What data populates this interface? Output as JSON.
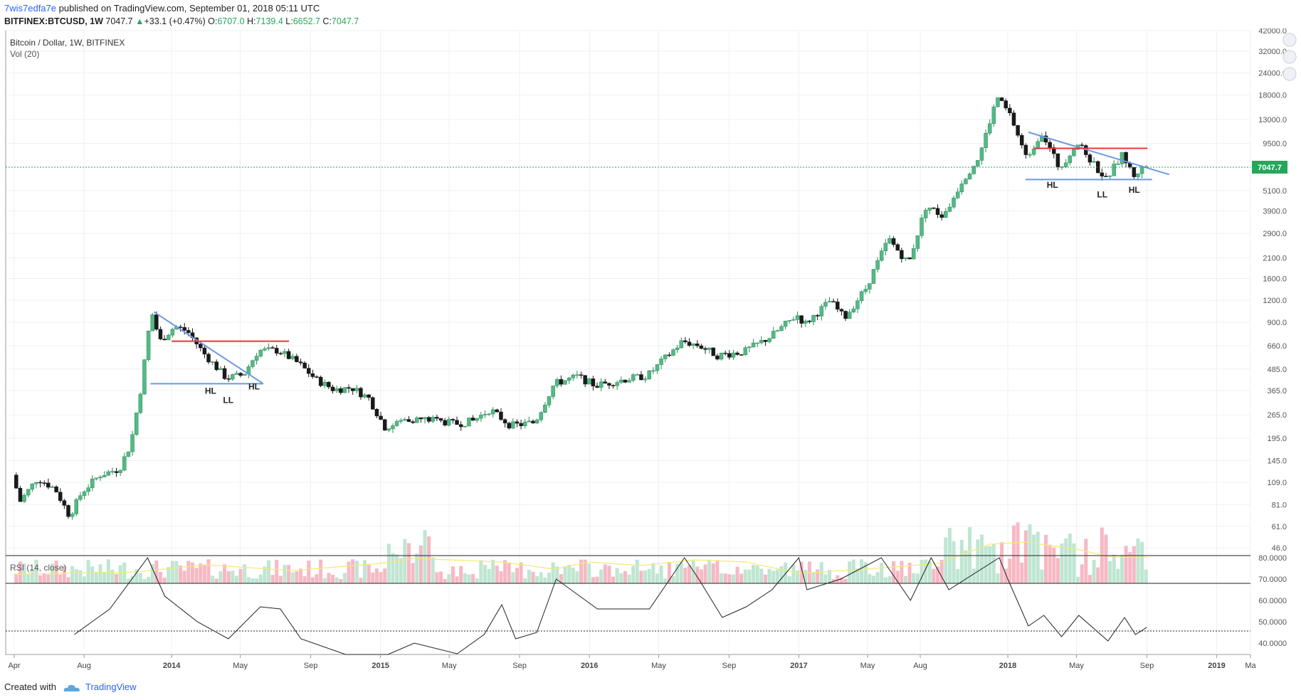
{
  "header": {
    "username": "7wis7edfa7e",
    "published_text": "published on TradingView.com, September 01, 2018 05:11 UTC",
    "symbol": "BITFINEX:BTCUSD, 1W",
    "last": "7047.7",
    "change_arrow": "▲",
    "change": "+33.1 (+0.47%)",
    "o_label": "O:",
    "o_value": "6707.0",
    "h_label": "H:",
    "h_value": "7139.4",
    "l_label": "L:",
    "l_value": "6652.7",
    "c_label": "C:",
    "c_value": "7047.7"
  },
  "footer": {
    "created_with": "Created with",
    "brand": "TradingView"
  },
  "chart_data": {
    "type": "candlestick",
    "title": "Bitcoin / Dollar, 1W, BITFINEX",
    "volume_label": "Vol (20)",
    "rsi_label": "RSI (14, close)",
    "price_scale": "log",
    "price_ticks": [
      "42000.0",
      "32000.0",
      "24000.0",
      "18000.0",
      "13000.0",
      "9500.0",
      "7047.7",
      "5100.0",
      "3900.0",
      "2900.0",
      "2100.0",
      "1600.0",
      "1200.0",
      "900.0",
      "660.0",
      "485.0",
      "365.0",
      "265.0",
      "195.0",
      "145.0",
      "109.0",
      "81.0",
      "61.0",
      "46.0"
    ],
    "last_price": "7047.7",
    "rsi_ticks": [
      "80.0000",
      "70.0000",
      "60.0000",
      "50.0000",
      "40.0000"
    ],
    "rsi_current": "47.4",
    "x_ticks": [
      "Apr",
      "Aug",
      "2014",
      "May",
      "Sep",
      "2015",
      "May",
      "Sep",
      "2016",
      "May",
      "Sep",
      "2017",
      "May",
      "Aug",
      "2018",
      "May",
      "Sep",
      "2019",
      "Ma"
    ],
    "annotations": [
      "HL",
      "LL",
      "HL",
      "HL",
      "LL",
      "HL"
    ],
    "price_path": [
      [
        "2013-04-01",
        120
      ],
      [
        "2013-04-15",
        85
      ],
      [
        "2013-05-15",
        115
      ],
      [
        "2013-06-15",
        100
      ],
      [
        "2013-07-10",
        70
      ],
      [
        "2013-08-01",
        96
      ],
      [
        "2013-09-01",
        120
      ],
      [
        "2013-10-05",
        130
      ],
      [
        "2013-10-25",
        180
      ],
      [
        "2013-11-12",
        380
      ],
      [
        "2013-11-30",
        1050
      ],
      [
        "2013-12-15",
        700
      ],
      [
        "2014-01-10",
        850
      ],
      [
        "2014-02-01",
        800
      ],
      [
        "2014-03-01",
        600
      ],
      [
        "2014-04-10",
        430
      ],
      [
        "2014-05-10",
        450
      ],
      [
        "2014-06-05",
        620
      ],
      [
        "2014-07-10",
        620
      ],
      [
        "2014-08-15",
        520
      ],
      [
        "2014-09-15",
        420
      ],
      [
        "2014-10-15",
        370
      ],
      [
        "2014-11-15",
        380
      ],
      [
        "2014-12-15",
        330
      ],
      [
        "2015-01-14",
        220
      ],
      [
        "2015-02-15",
        250
      ],
      [
        "2015-04-01",
        250
      ],
      [
        "2015-05-15",
        235
      ],
      [
        "2015-06-15",
        245
      ],
      [
        "2015-07-15",
        285
      ],
      [
        "2015-08-20",
        230
      ],
      [
        "2015-10-01",
        240
      ],
      [
        "2015-11-04",
        400
      ],
      [
        "2015-12-15",
        440
      ],
      [
        "2016-01-15",
        390
      ],
      [
        "2016-03-01",
        420
      ],
      [
        "2016-04-15",
        445
      ],
      [
        "2016-06-15",
        700
      ],
      [
        "2016-07-15",
        660
      ],
      [
        "2016-08-15",
        580
      ],
      [
        "2016-10-01",
        610
      ],
      [
        "2016-11-15",
        740
      ],
      [
        "2017-01-01",
        990
      ],
      [
        "2017-01-15",
        880
      ],
      [
        "2017-02-28",
        1190
      ],
      [
        "2017-03-25",
        950
      ],
      [
        "2017-05-01",
        1400
      ],
      [
        "2017-06-10",
        2700
      ],
      [
        "2017-07-15",
        1950
      ],
      [
        "2017-08-15",
        4200
      ],
      [
        "2017-09-15",
        3600
      ],
      [
        "2017-10-15",
        5700
      ],
      [
        "2017-11-15",
        7900
      ],
      [
        "2017-12-17",
        17500
      ],
      [
        "2018-01-10",
        13500
      ],
      [
        "2018-02-06",
        7800
      ],
      [
        "2018-03-05",
        11000
      ],
      [
        "2018-04-05",
        6800
      ],
      [
        "2018-05-05",
        9600
      ],
      [
        "2018-06-25",
        5900
      ],
      [
        "2018-07-24",
        8200
      ],
      [
        "2018-08-12",
        6200
      ],
      [
        "2018-09-01",
        7047
      ]
    ],
    "rsi_path": [
      [
        "2013-07-15",
        44
      ],
      [
        "2013-09-15",
        56
      ],
      [
        "2013-11-20",
        90
      ],
      [
        "2013-12-20",
        62
      ],
      [
        "2014-02-15",
        50
      ],
      [
        "2014-04-10",
        42
      ],
      [
        "2014-06-05",
        57
      ],
      [
        "2014-07-10",
        56
      ],
      [
        "2014-08-15",
        42
      ],
      [
        "2014-11-01",
        30
      ],
      [
        "2015-01-14",
        25
      ],
      [
        "2015-03-01",
        40
      ],
      [
        "2015-05-15",
        35
      ],
      [
        "2015-07-01",
        44
      ],
      [
        "2015-08-01",
        58
      ],
      [
        "2015-08-25",
        42
      ],
      [
        "2015-10-01",
        45
      ],
      [
        "2015-11-04",
        70
      ],
      [
        "2016-01-15",
        56
      ],
      [
        "2016-04-15",
        56
      ],
      [
        "2016-06-15",
        84
      ],
      [
        "2016-07-10",
        70
      ],
      [
        "2016-08-20",
        52
      ],
      [
        "2016-10-01",
        57
      ],
      [
        "2016-11-15",
        65
      ],
      [
        "2017-01-01",
        84
      ],
      [
        "2017-01-15",
        65
      ],
      [
        "2017-03-15",
        70
      ],
      [
        "2017-05-25",
        86
      ],
      [
        "2017-07-15",
        60
      ],
      [
        "2017-08-20",
        82
      ],
      [
        "2017-09-20",
        65
      ],
      [
        "2017-12-17",
        95
      ],
      [
        "2018-01-01",
        70
      ],
      [
        "2018-02-06",
        48
      ],
      [
        "2018-03-05",
        53
      ],
      [
        "2018-04-05",
        43
      ],
      [
        "2018-05-05",
        53
      ],
      [
        "2018-06-25",
        41
      ],
      [
        "2018-07-24",
        52
      ],
      [
        "2018-08-12",
        44
      ],
      [
        "2018-09-01",
        47.4
      ]
    ],
    "volume_ma_path": [
      [
        "2013-04-01",
        13
      ],
      [
        "2013-11-01",
        16
      ],
      [
        "2014-03-01",
        26
      ],
      [
        "2014-08-01",
        18
      ],
      [
        "2015-01-01",
        28
      ],
      [
        "2015-03-01",
        35
      ],
      [
        "2015-08-01",
        30
      ],
      [
        "2015-11-01",
        20
      ],
      [
        "2016-01-01",
        30
      ],
      [
        "2016-04-01",
        25
      ],
      [
        "2016-07-01",
        33
      ],
      [
        "2016-10-01",
        30
      ],
      [
        "2017-01-01",
        14
      ],
      [
        "2017-05-01",
        20
      ],
      [
        "2017-09-01",
        28
      ],
      [
        "2017-12-01",
        55
      ],
      [
        "2018-02-01",
        58
      ],
      [
        "2018-05-01",
        48
      ],
      [
        "2018-07-01",
        37
      ],
      [
        "2018-09-01",
        37
      ]
    ]
  }
}
